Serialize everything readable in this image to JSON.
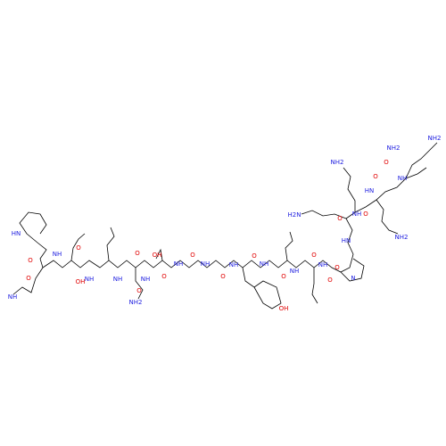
{
  "atoms": [
    "NH2",
    "NH2",
    "O",
    "NH",
    "O",
    "HN",
    "NH2",
    "O",
    "NH",
    "NH2",
    "O",
    "H2N",
    "HN",
    "O",
    "N",
    "O",
    "NH",
    "O",
    "NH",
    "O",
    "NH",
    "O",
    "NH",
    "OH",
    "O",
    "NH",
    "O",
    "NH",
    "OH",
    "O",
    "NH",
    "O",
    "NH",
    "NH2",
    "O",
    "NH",
    "OH",
    "O",
    "NH",
    "O",
    "O",
    "HN",
    "NH"
  ]
}
